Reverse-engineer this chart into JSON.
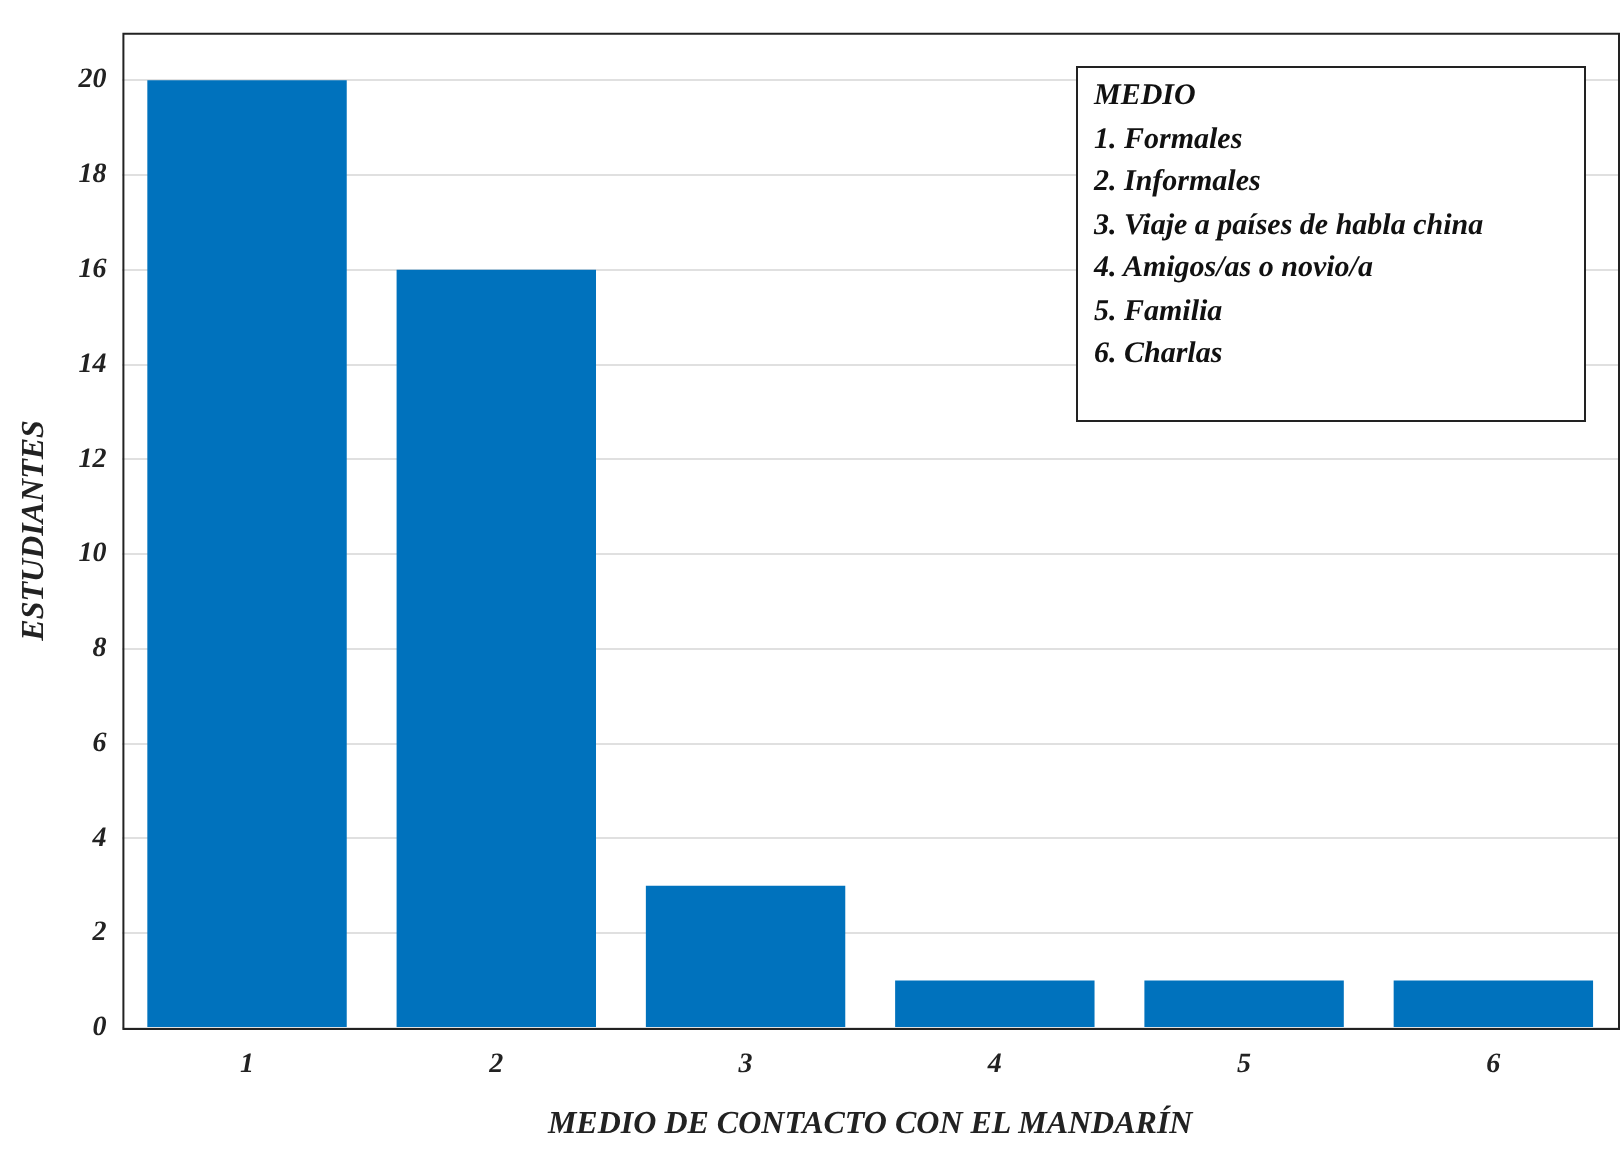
{
  "chart_data": {
    "type": "bar",
    "xlabel": "MEDIO DE CONTACTO CON EL MANDARÍN",
    "ylabel": "ESTUDIANTES",
    "categories": [
      "1",
      "2",
      "3",
      "4",
      "5",
      "6"
    ],
    "values": [
      20,
      16,
      3,
      1,
      1,
      1
    ],
    "color": "#0072bd",
    "ylim": [
      0,
      21
    ],
    "yticks": [
      0,
      2,
      4,
      6,
      8,
      10,
      12,
      14,
      16,
      18,
      20
    ],
    "grid": "y",
    "annotations": [
      "MEDIO",
      "1. Formales",
      "2. Informales",
      "3. Viaje a países de habla china",
      "4. Amigos/as o novio/a",
      "5. Familia",
      "6. Charlas"
    ]
  }
}
